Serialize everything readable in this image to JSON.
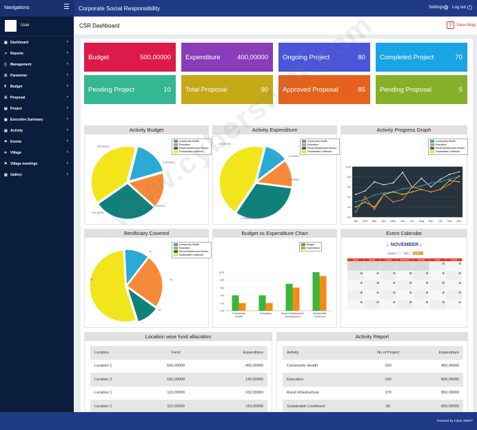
{
  "topbar": {
    "nav_label": "Navigations",
    "title": "Corporate Social Responsibility",
    "settings": "Settings",
    "logout": "Log out"
  },
  "sidebar": {
    "user": "User",
    "items": [
      {
        "label": "Dashboard",
        "icon": "dashboard-icon"
      },
      {
        "label": "Reports",
        "icon": "chart-icon"
      },
      {
        "label": "Management",
        "icon": "management-icon"
      },
      {
        "label": "Parameter",
        "icon": "parameter-icon"
      },
      {
        "label": "Budget",
        "icon": "rupee-icon"
      },
      {
        "label": "Proposal",
        "icon": "proposal-icon"
      },
      {
        "label": "Project",
        "icon": "project-icon"
      },
      {
        "label": "Executive Summary",
        "icon": "summary-icon"
      },
      {
        "label": "Activity",
        "icon": "activity-icon"
      },
      {
        "label": "Events",
        "icon": "flag-icon"
      },
      {
        "label": "Village",
        "icon": "plane-icon"
      },
      {
        "label": "Village meetings",
        "icon": "meeting-icon"
      },
      {
        "label": "Gallery",
        "icon": "gallery-icon"
      }
    ]
  },
  "page": {
    "title": "CSR Dashboard",
    "view_map": "View Map"
  },
  "cards": [
    {
      "label": "Budget",
      "value": "500,00000",
      "color": "#dc1b4a"
    },
    {
      "label": "Expenditure",
      "value": "400,00000",
      "color": "#8a3db8"
    },
    {
      "label": "Ongoing Project",
      "value": "80",
      "color": "#4a55d9"
    },
    {
      "label": "Completed Project",
      "value": "70",
      "color": "#1aa4e6"
    },
    {
      "label": "Pending Project",
      "value": "10",
      "color": "#35b791"
    },
    {
      "label": "Total Proposal",
      "value": "90",
      "color": "#c3a916"
    },
    {
      "label": "Approved Proposal",
      "value": "85",
      "color": "#e4621c"
    },
    {
      "label": "Pending Proposal",
      "value": "5",
      "color": "#86b028"
    }
  ],
  "legend_labels": [
    "Community Health",
    "Education",
    "Rural Infrastructure Develo..",
    "Sustainable Livelihood"
  ],
  "colors": {
    "community": "#2aaad5",
    "education": "#f78a3a",
    "rural": "#10807b",
    "livelihood": "#f2e51b",
    "line_bg": "#26333d",
    "budget": "#3bb53b",
    "expenditure": "#f28c16"
  },
  "chart_data": [
    {
      "type": "pie",
      "title": "Activity Budget",
      "categories": [
        "Community Health",
        "Education",
        "Rural Infrastructure Develo..",
        "Sustainable Livelihood"
      ],
      "values": [
        11000000,
        10700000,
        19100000,
        25700000
      ],
      "labels": [
        "11000000",
        "10700000",
        "19100000",
        "25700000"
      ]
    },
    {
      "type": "pie",
      "title": "Activity Expenditure",
      "categories": [
        "Community Health",
        "Education",
        "Rural Infrastructure Develo..",
        "Sustainable Livelihood"
      ],
      "values": [
        5750000,
        6700000,
        17500000,
        24050180
      ],
      "labels": [
        "5750000",
        "6700000",
        "17500000",
        "24050180"
      ]
    },
    {
      "type": "line",
      "title": "Activity Progress Graph",
      "categories": [
        "Jan",
        "Feb",
        "Mar",
        "Apr",
        "May",
        "Jun",
        "Jul",
        "Aug",
        "Sep",
        "Oct",
        "Nov",
        "Dec"
      ],
      "ylim": [
        0,
        10
      ],
      "yticks": [
        "0.0",
        "2.0",
        "4.0",
        "6.0",
        "8.0",
        "10.0"
      ],
      "series": [
        {
          "name": "Community Health",
          "values": [
            4.5,
            5.2,
            7,
            6.4,
            6.8,
            8.9,
            5.9,
            7.7,
            6,
            7.5,
            8.5,
            9
          ]
        },
        {
          "name": "Education",
          "values": [
            3,
            3.5,
            4.4,
            4.8,
            5,
            5.6,
            5.8,
            6.2,
            6.8,
            7,
            7.6,
            8
          ]
        },
        {
          "name": "Rural Infrastructure Develo..",
          "values": [
            2,
            3,
            2,
            4.5,
            5,
            4.5,
            5,
            5.5,
            5,
            5.5,
            7.3,
            7
          ]
        },
        {
          "name": "Sustainable Livelihood",
          "values": [
            1,
            4,
            1.5,
            4.5,
            3,
            3.5,
            6,
            5.5,
            5,
            5.5,
            6.5,
            8.2
          ]
        }
      ]
    },
    {
      "type": "pie",
      "title": "Benificiary Covered",
      "categories": [
        "Community Health",
        "Education",
        "Rural Infrastructure Develo..",
        "Sustainable Livelihood"
      ],
      "values": [
        11,
        24,
        10,
        53
      ],
      "labels": [
        "11",
        "24",
        "10",
        "53"
      ]
    },
    {
      "type": "bar",
      "title": "Budget vs Expenditure Chart",
      "categories": [
        "Community Health",
        "Education",
        "Rural Infrastructure Development",
        "Sustainable Livelihood"
      ],
      "ylim": [
        0,
        10
      ],
      "yticks": [
        "0.0",
        "2.0",
        "4.0",
        "6.0",
        "8.0",
        "10.0"
      ],
      "series": [
        {
          "name": "Budget",
          "values": [
            4,
            4,
            7,
            10
          ]
        },
        {
          "name": "Expenditure",
          "values": [
            2,
            2,
            6,
            9
          ]
        }
      ]
    }
  ],
  "calendar": {
    "title": "Event Calendar",
    "month": "NOVEMBER",
    "btn1": "calendar",
    "btn2": "2019",
    "btn3": "Today",
    "days": [
      "Sunday",
      "Monday",
      "Tuesday",
      "Wednesday",
      "Thursday",
      "Friday",
      "Saturday"
    ]
  },
  "location_table": {
    "title": "Location wise fund allocation",
    "headers": [
      "Location",
      "Fund",
      "Expenditure"
    ],
    "rows": [
      [
        "Location 1",
        "500,00000",
        "450,00000"
      ],
      [
        "Location 2",
        "150,00000",
        "140,00000"
      ],
      [
        "Location 1",
        "110,00000",
        "102,00000"
      ],
      [
        "Location 1",
        "112,00000",
        "110,00000"
      ]
    ]
  },
  "activity_table": {
    "title": "Activity Report",
    "headers": [
      "Activity",
      "No of Project",
      "Expenditure"
    ],
    "rows": [
      [
        "Community Health",
        "150",
        "450,00000"
      ],
      [
        "Education",
        "140",
        "800,00000"
      ],
      [
        "Rural infrastructure",
        "170",
        "950,00000"
      ],
      [
        "Sustainable Livelihood",
        "90",
        "650,00000"
      ]
    ]
  },
  "footer": "Powered by Cyber SWIFT",
  "watermark": "www.cyberswift.com"
}
